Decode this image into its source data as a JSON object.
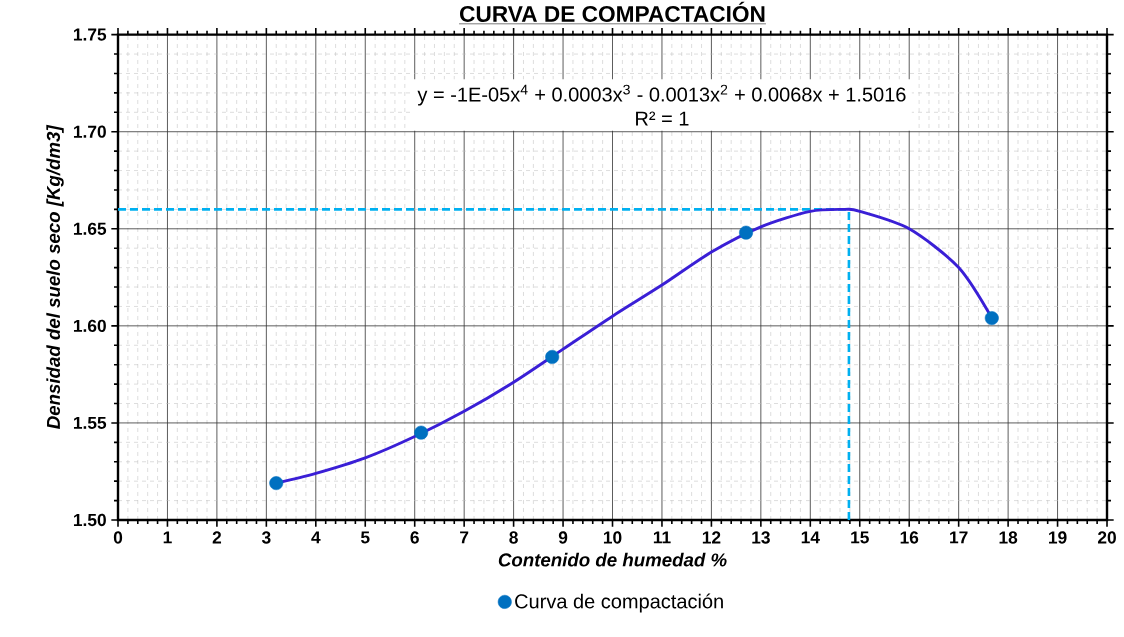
{
  "chart_data": {
    "type": "scatter",
    "title": "CURVA DE COMPACTACIÓN",
    "xlabel": "Contenido de humedad %",
    "ylabel": "Densidad del suelo seco [Kg/dm3]",
    "series": [
      {
        "name": "Curva de compactación",
        "color": "#0070c0",
        "marker": "circle",
        "x": [
          3.2,
          6.13,
          8.78,
          12.7,
          17.67
        ],
        "values": [
          1.519,
          1.545,
          1.584,
          1.648,
          1.604
        ]
      },
      {
        "type": "line",
        "color": "#3a1fd6",
        "marker": "none",
        "line_style": "solid",
        "x": [
          3.2,
          4,
          5,
          6,
          7,
          8,
          9,
          10,
          11,
          12,
          13,
          14,
          14.7,
          15,
          16,
          17,
          17.67
        ],
        "values": [
          1.519,
          1.524,
          1.532,
          1.543,
          1.556,
          1.571,
          1.588,
          1.605,
          1.621,
          1.638,
          1.651,
          1.659,
          1.66,
          1.659,
          1.65,
          1.63,
          1.604
        ]
      }
    ],
    "xlim": [
      0,
      20
    ],
    "xticks": [
      0,
      1,
      2,
      3,
      4,
      5,
      6,
      7,
      8,
      9,
      10,
      11,
      12,
      13,
      14,
      15,
      16,
      17,
      18,
      19,
      20
    ],
    "ylim": [
      1.5,
      1.75
    ],
    "yticks": [
      {
        "value": 1.5,
        "label": "1.50"
      },
      {
        "value": 1.55,
        "label": "1.55"
      },
      {
        "value": 1.6,
        "label": "1.60"
      },
      {
        "value": 1.65,
        "label": "1.65"
      },
      {
        "value": 1.7,
        "label": "1.70"
      },
      {
        "value": 1.75,
        "label": "1.75"
      }
    ],
    "ref_lines": [
      {
        "axis": "y",
        "value": 1.66,
        "color": "#00b0f0",
        "line_style": "dashed"
      },
      {
        "axis": "x",
        "value": 14.78,
        "color": "#00b0f0",
        "line_style": "dashed"
      }
    ],
    "annotations": [
      "y = -1E-05x$^{4}$ + 0.0003x$^{3}$ - 0.0013x$^{2}$ + 0.0068x + 1.5016",
      "R² = 1"
    ],
    "grid": true,
    "legend": "bottom"
  }
}
